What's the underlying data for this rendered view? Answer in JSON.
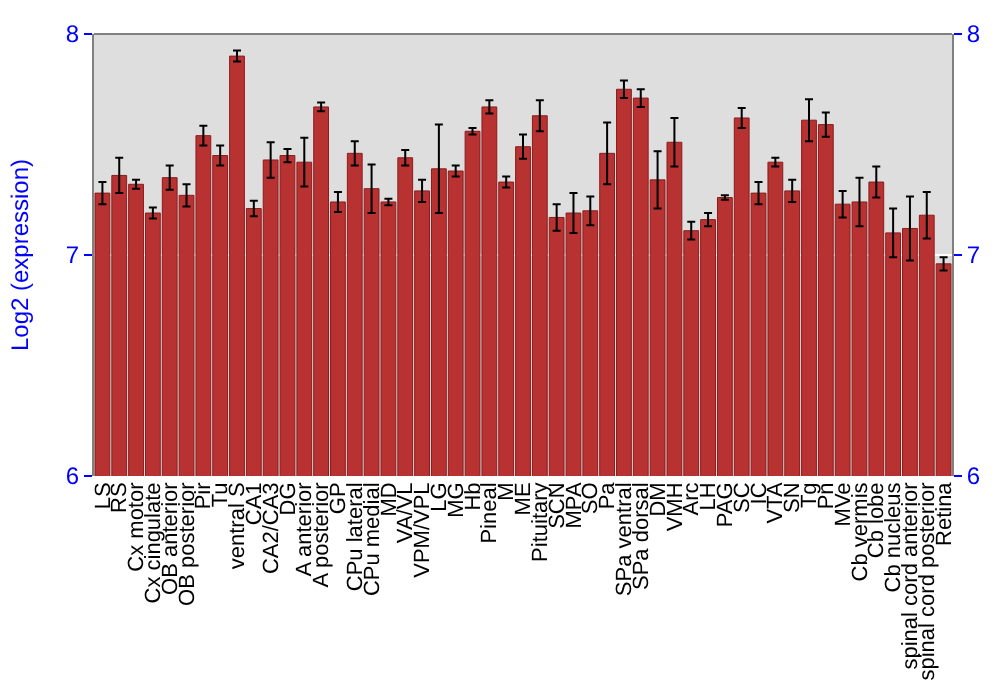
{
  "chart_data": {
    "type": "bar",
    "ylabel": "Log2 (expression)",
    "categories": [
      "LS",
      "RS",
      "Cx motor",
      "Cx cingulate",
      "OB anterior",
      "OB posterior",
      "Pir",
      "Tu",
      "ventral S",
      "CA1",
      "CA2/CA3",
      "DG",
      "A anterior",
      "A posterior",
      "GP",
      "CPu lateral",
      "CPu medial",
      "MD",
      "VA/VL",
      "VPM/VPL",
      "LG",
      "MG",
      "Hb",
      "Pineal",
      "M",
      "ME",
      "Pituitary",
      "SCN",
      "MPA",
      "SO",
      "Pa",
      "SPa ventral",
      "SPa dorsal",
      "DM",
      "VMH",
      "Arc",
      "LH",
      "PAG",
      "SC",
      "IC",
      "VTA",
      "SN",
      "Tg",
      "Pn",
      "MVe",
      "Cb vermis",
      "Cb lobe",
      "Cb nucleus",
      "spinal cord anterior",
      "spinal cord posterior",
      "Retina"
    ],
    "values": [
      7.28,
      7.36,
      7.32,
      7.19,
      7.35,
      7.27,
      7.54,
      7.45,
      7.9,
      7.21,
      7.43,
      7.45,
      7.42,
      7.67,
      7.24,
      7.46,
      7.3,
      7.24,
      7.44,
      7.29,
      7.39,
      7.38,
      7.56,
      7.67,
      7.33,
      7.49,
      7.63,
      7.17,
      7.19,
      7.2,
      7.46,
      7.75,
      7.71,
      7.34,
      7.51,
      7.11,
      7.16,
      7.26,
      7.62,
      7.28,
      7.42,
      7.29,
      7.61,
      7.59,
      7.23,
      7.24,
      7.33,
      7.1,
      7.12,
      7.18,
      6.96
    ],
    "errors": [
      0.05,
      0.08,
      0.02,
      0.025,
      0.055,
      0.05,
      0.045,
      0.045,
      0.025,
      0.035,
      0.08,
      0.03,
      0.11,
      0.02,
      0.045,
      0.055,
      0.11,
      0.015,
      0.035,
      0.05,
      0.2,
      0.025,
      0.015,
      0.03,
      0.025,
      0.055,
      0.07,
      0.06,
      0.09,
      0.065,
      0.14,
      0.04,
      0.04,
      0.13,
      0.11,
      0.04,
      0.03,
      0.01,
      0.045,
      0.05,
      0.02,
      0.05,
      0.095,
      0.055,
      0.06,
      0.11,
      0.07,
      0.11,
      0.145,
      0.105,
      0.03
    ],
    "color": "#b83232",
    "ylim": [
      6,
      8
    ],
    "yticks": [
      6,
      7,
      8
    ],
    "y2lim": [
      6,
      8
    ],
    "y2ticks": [
      6,
      7,
      8
    ],
    "grid": "y"
  }
}
